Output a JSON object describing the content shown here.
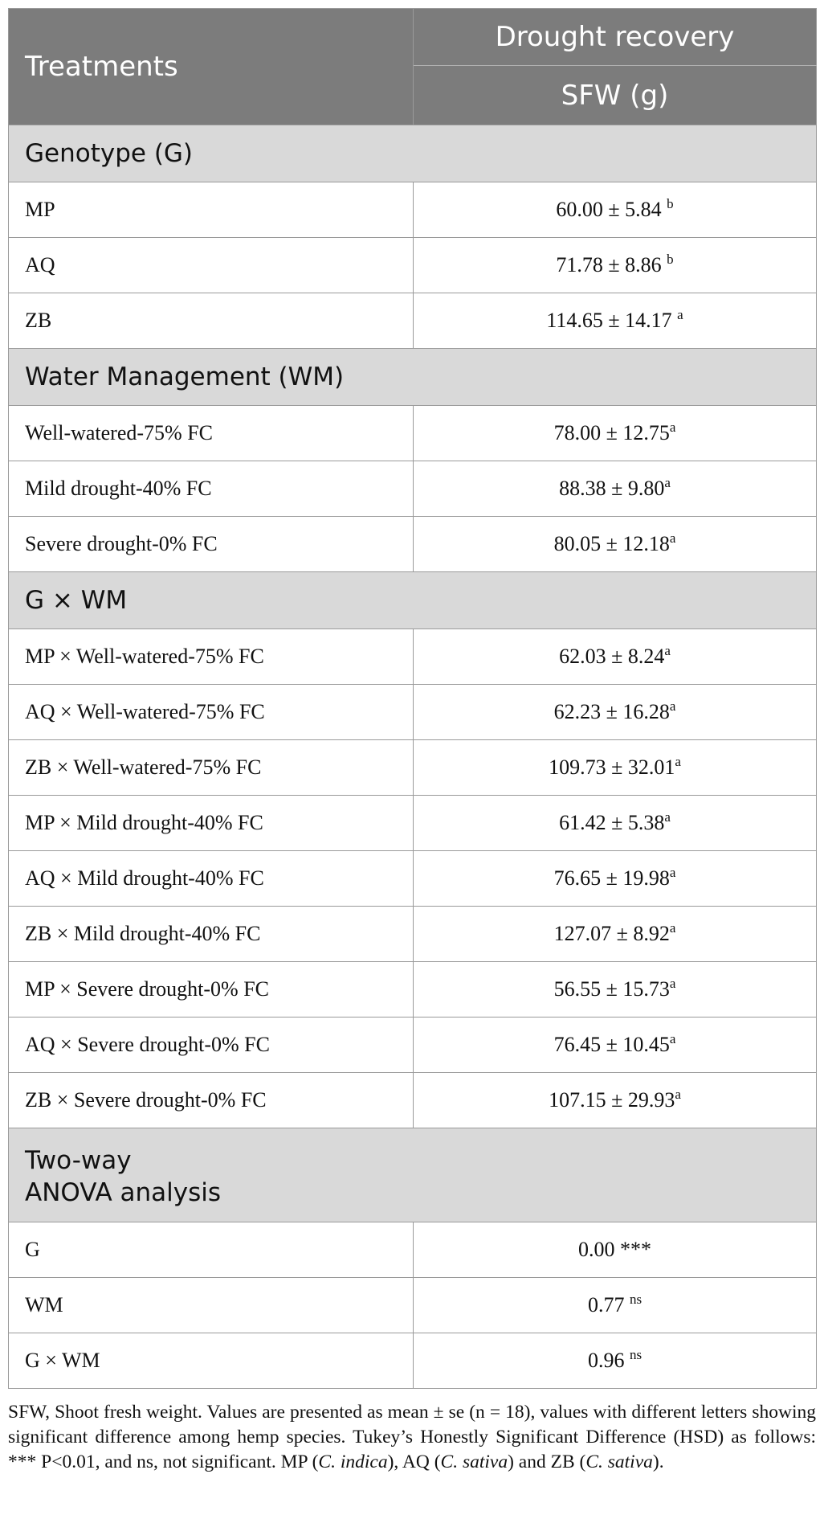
{
  "table": {
    "header": {
      "treatments": "Treatments",
      "group": "Drought recovery",
      "measure": "SFW (g)"
    },
    "sections": [
      {
        "title": "Genotype (G)",
        "rows": [
          {
            "label": "MP",
            "value": "60.00 ± 5.84 ",
            "sup": "b"
          },
          {
            "label": "AQ",
            "value": "71.78 ± 8.86 ",
            "sup": "b"
          },
          {
            "label": "ZB",
            "value": "114.65 ± 14.17 ",
            "sup": "a"
          }
        ]
      },
      {
        "title": "Water Management (WM)",
        "rows": [
          {
            "label": "Well-watered-75% FC",
            "value": "78.00 ± 12.75",
            "sup": "a"
          },
          {
            "label": "Mild drought-40% FC",
            "value": "88.38 ± 9.80",
            "sup": "a"
          },
          {
            "label": "Severe drought-0% FC",
            "value": "80.05 ± 12.18",
            "sup": "a"
          }
        ]
      },
      {
        "title": "G × WM",
        "rows": [
          {
            "label": "MP × Well-watered-75% FC",
            "value": "62.03 ± 8.24",
            "sup": "a"
          },
          {
            "label": "AQ × Well-watered-75% FC",
            "value": "62.23 ± 16.28",
            "sup": "a"
          },
          {
            "label": "ZB × Well-watered-75% FC",
            "value": "109.73 ± 32.01",
            "sup": "a"
          },
          {
            "label": "MP × Mild drought-40% FC",
            "value": "61.42 ± 5.38",
            "sup": "a"
          },
          {
            "label": "AQ × Mild drought-40% FC",
            "value": "76.65 ± 19.98",
            "sup": "a"
          },
          {
            "label": "ZB × Mild drought-40% FC",
            "value": "127.07 ± 8.92",
            "sup": "a"
          },
          {
            "label": "MP × Severe drought-0% FC",
            "value": "56.55 ± 15.73",
            "sup": "a"
          },
          {
            "label": "AQ × Severe drought-0% FC",
            "value": "76.45 ± 10.45",
            "sup": "a"
          },
          {
            "label": "ZB × Severe drought-0% FC",
            "value": "107.15 ± 29.93",
            "sup": "a"
          }
        ]
      },
      {
        "title_line1": "Two-way",
        "title_line2": "ANOVA analysis",
        "rows": [
          {
            "label": "G",
            "value": "0.00 ***",
            "sup": ""
          },
          {
            "label": "WM",
            "value": "0.77 ",
            "sup": "ns"
          },
          {
            "label": "G × WM",
            "value": "0.96 ",
            "sup": "ns"
          }
        ]
      }
    ]
  },
  "footnote": {
    "text_1": "SFW, Shoot fresh weight. Values are presented as mean ± se (n = 18), values with different letters showing significant difference among hemp species. Tukey’s Honestly Significant Difference (HSD) as follows: *** P<0.01, and ns, not significant. MP (",
    "species_1": "C. indica",
    "text_2": "), AQ (",
    "species_2": "C. sativa",
    "text_3": ") and ZB (",
    "species_3": "C. sativa",
    "text_4": ")."
  }
}
